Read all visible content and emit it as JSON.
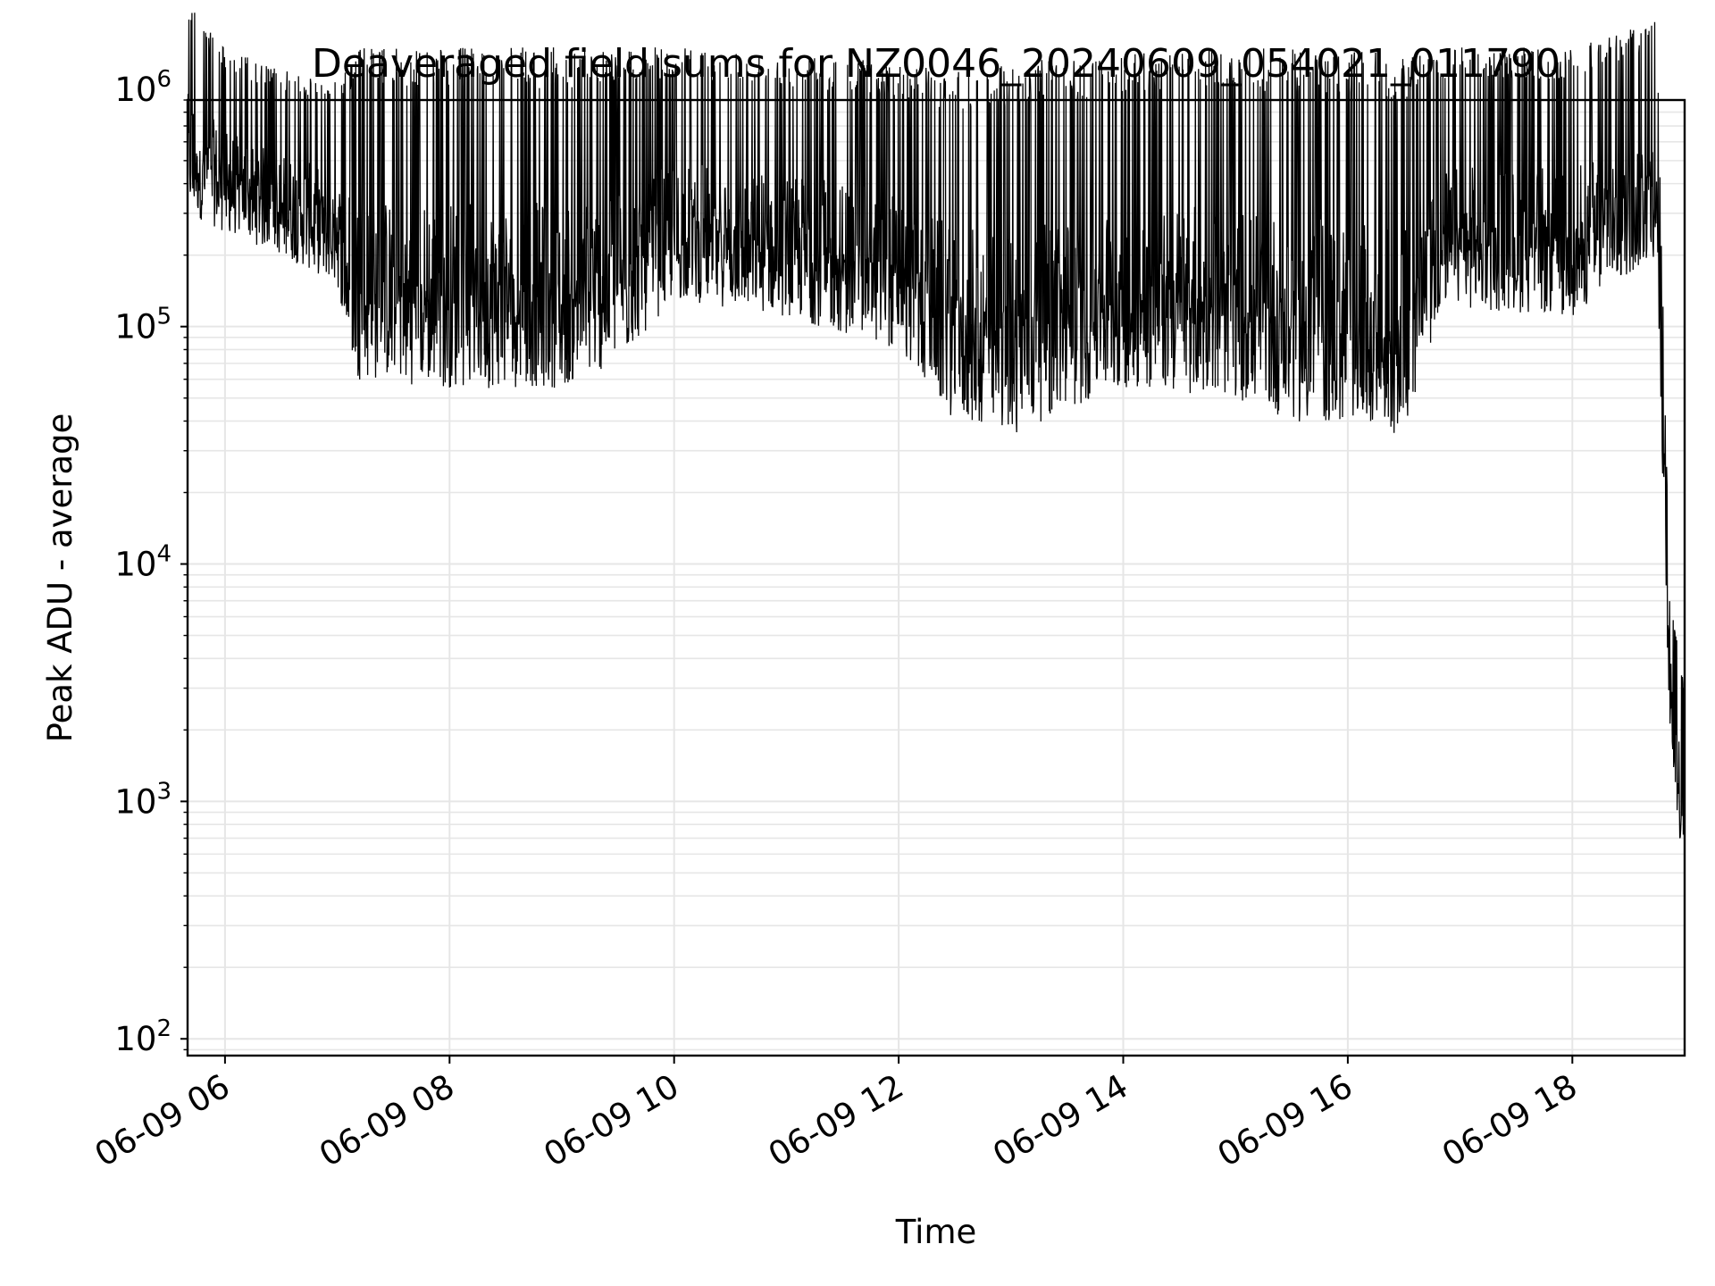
{
  "chart_data": {
    "type": "line",
    "title": "Deaveraged field sums for NZ0046_20240609_054021_011790",
    "xlabel": "Time",
    "ylabel": "Peak ADU - average",
    "yscale": "log",
    "grid": true,
    "legend": "none",
    "xlim": [
      "2024-06-09 05:40",
      "2024-06-09 19:00"
    ],
    "ylim": [
      85,
      900000
    ],
    "x_ticks": [
      {
        "value": "2024-06-09 06:00",
        "label": "06-09 06"
      },
      {
        "value": "2024-06-09 08:00",
        "label": "06-09 08"
      },
      {
        "value": "2024-06-09 10:00",
        "label": "06-09 10"
      },
      {
        "value": "2024-06-09 12:00",
        "label": "06-09 12"
      },
      {
        "value": "2024-06-09 14:00",
        "label": "06-09 14"
      },
      {
        "value": "2024-06-09 16:00",
        "label": "06-09 16"
      },
      {
        "value": "2024-06-09 18:00",
        "label": "06-09 18"
      }
    ],
    "y_ticks": [
      {
        "value": 100,
        "base": "10",
        "exp": "2"
      },
      {
        "value": 1000,
        "base": "10",
        "exp": "3"
      },
      {
        "value": 10000,
        "base": "10",
        "exp": "4"
      },
      {
        "value": 100000,
        "base": "10",
        "exp": "5"
      },
      {
        "value": 1000000,
        "base": "10",
        "exp": "6"
      }
    ],
    "series": [
      {
        "color": "#000000",
        "x_start": "2024-06-09 05:40",
        "x_end": "2024-06-09 19:00",
        "profile": [
          {
            "x": "2024-06-09 05:40",
            "low": 300000,
            "high": 2500000
          },
          {
            "x": "2024-06-09 06:00",
            "low": 250000,
            "high": 1500000
          },
          {
            "x": "2024-06-09 06:30",
            "low": 200000,
            "high": 1200000
          },
          {
            "x": "2024-06-09 07:00",
            "low": 150000,
            "high": 1100000
          },
          {
            "x": "2024-06-09 07:10",
            "low": 60000,
            "high": 1500000
          },
          {
            "x": "2024-06-09 08:00",
            "low": 55000,
            "high": 1500000
          },
          {
            "x": "2024-06-09 09:00",
            "low": 55000,
            "high": 1500000
          },
          {
            "x": "2024-06-09 09:30",
            "low": 70000,
            "high": 1500000
          },
          {
            "x": "2024-06-09 10:00",
            "low": 130000,
            "high": 1500000
          },
          {
            "x": "2024-06-09 11:00",
            "low": 110000,
            "high": 1400000
          },
          {
            "x": "2024-06-09 12:00",
            "low": 80000,
            "high": 1300000
          },
          {
            "x": "2024-06-09 12:30",
            "low": 40000,
            "high": 1200000
          },
          {
            "x": "2024-06-09 13:00",
            "low": 35000,
            "high": 1300000
          },
          {
            "x": "2024-06-09 14:00",
            "low": 55000,
            "high": 1400000
          },
          {
            "x": "2024-06-09 15:00",
            "low": 50000,
            "high": 1500000
          },
          {
            "x": "2024-06-09 15:30",
            "low": 40000,
            "high": 1500000
          },
          {
            "x": "2024-06-09 16:30",
            "low": 35000,
            "high": 1400000
          },
          {
            "x": "2024-06-09 16:50",
            "low": 120000,
            "high": 1500000
          },
          {
            "x": "2024-06-09 18:00",
            "low": 110000,
            "high": 1500000
          },
          {
            "x": "2024-06-09 18:45",
            "low": 200000,
            "high": 2000000
          },
          {
            "x": "2024-06-09 18:52",
            "low": 2000,
            "high": 8000
          },
          {
            "x": "2024-06-09 19:00",
            "low": 400,
            "high": 3000
          }
        ]
      }
    ]
  }
}
